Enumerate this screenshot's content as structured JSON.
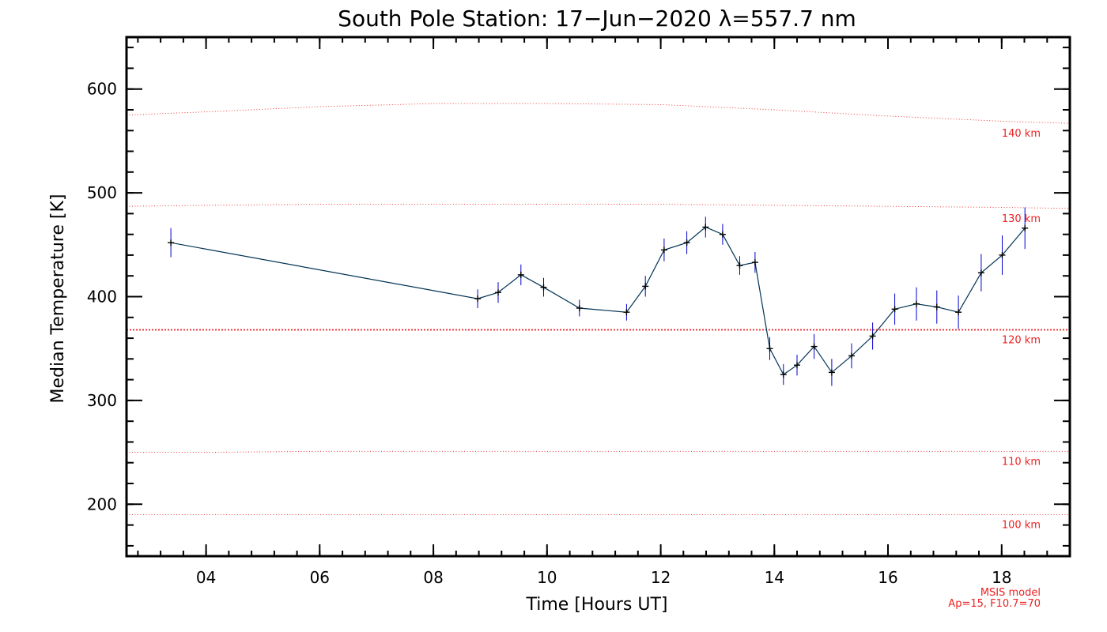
{
  "chart_data": {
    "type": "line",
    "title": "South Pole Station: 17−Jun−2020 λ=557.7 nm",
    "xlabel": "Time [Hours UT]",
    "ylabel": "Median Temperature [K]",
    "xlim": [
      2.6,
      19.2
    ],
    "ylim": [
      150,
      650
    ],
    "x_ticks": [
      4,
      6,
      8,
      10,
      12,
      14,
      16,
      18
    ],
    "x_tick_labels": [
      "04",
      "06",
      "08",
      "10",
      "12",
      "14",
      "16",
      "18"
    ],
    "y_ticks": [
      200,
      300,
      400,
      500,
      600
    ],
    "y_tick_labels": [
      "200",
      "300",
      "400",
      "500",
      "600"
    ],
    "grid": false,
    "line_color": "#003355",
    "marker_color": "#000000",
    "errorbar_color": "#0000cc",
    "series": [
      {
        "x": [
          3.38,
          8.78,
          9.14,
          9.54,
          9.94,
          10.57,
          11.4,
          11.73,
          12.06,
          12.46,
          12.79,
          13.09,
          13.39,
          13.66,
          13.92,
          14.16,
          14.4,
          14.7,
          15.01,
          15.36,
          15.73,
          16.12,
          16.5,
          16.86,
          17.24,
          17.64,
          18.01,
          18.41
        ],
        "y": [
          452,
          398,
          404,
          421,
          409,
          389,
          385,
          410,
          445,
          452,
          467,
          460,
          430,
          433,
          350,
          325,
          334,
          352,
          327,
          343,
          362,
          388,
          393,
          390,
          385,
          423,
          440,
          466
        ],
        "err": [
          14,
          9,
          10,
          10,
          9,
          8,
          8,
          10,
          11,
          11,
          10,
          10,
          9,
          10,
          11,
          10,
          10,
          12,
          13,
          12,
          13,
          15,
          16,
          16,
          16,
          18,
          19,
          20
        ]
      }
    ],
    "msis_reference": {
      "color": "#ee2222",
      "x": [
        2.6,
        4,
        6,
        8,
        10,
        12,
        14,
        16,
        18,
        19.2
      ],
      "levels": [
        {
          "label": "100 km",
          "y": [
            190,
            190,
            190,
            190,
            190,
            190,
            190,
            190,
            190,
            190
          ]
        },
        {
          "label": "110 km",
          "y": [
            250,
            250,
            251,
            251,
            251,
            251,
            251,
            251,
            251,
            251
          ]
        },
        {
          "label": "120 km",
          "y": [
            368,
            368,
            368,
            368,
            368,
            368,
            368,
            368,
            368,
            368
          ]
        },
        {
          "label": "130 km",
          "y": [
            487,
            488,
            489,
            489,
            489,
            489,
            488,
            487,
            486,
            485
          ]
        },
        {
          "label": "140 km",
          "y": [
            575,
            578,
            583,
            586,
            586,
            585,
            580,
            574,
            569,
            567
          ]
        }
      ]
    },
    "annotation": [
      "MSIS model",
      "Ap=15, F10.7=70"
    ]
  }
}
